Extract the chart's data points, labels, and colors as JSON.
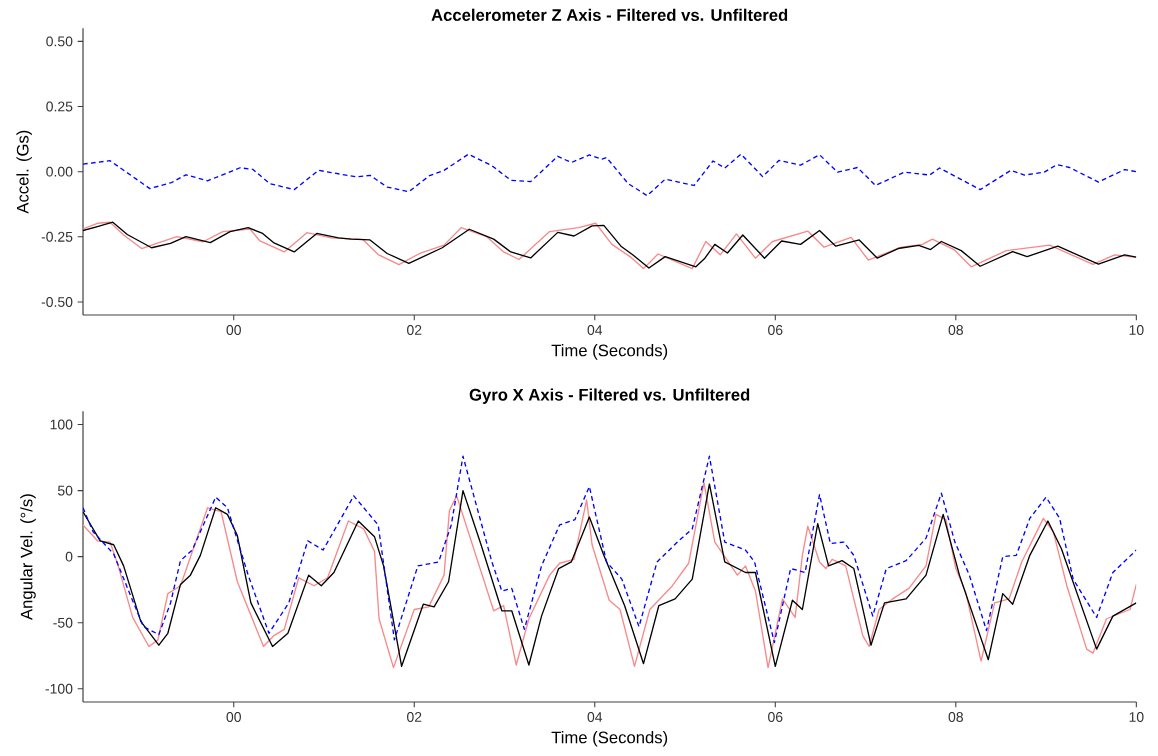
{
  "chart_data": [
    {
      "type": "line",
      "title": "Accelerometer Z Axis - Filtered vs. Unfiltered",
      "xlabel": "Time (Seconds)",
      "ylabel": "Accel. (Gs)",
      "xlim": [
        -1.67,
        10
      ],
      "ylim": [
        -0.55,
        0.55
      ],
      "xticks": [
        {
          "value": 0,
          "label": "00"
        },
        {
          "value": 2,
          "label": "02"
        },
        {
          "value": 4,
          "label": "04"
        },
        {
          "value": 6,
          "label": "06"
        },
        {
          "value": 8,
          "label": "08"
        },
        {
          "value": 10,
          "label": "10"
        }
      ],
      "yticks": [
        {
          "value": -0.5,
          "label": "-0.50"
        },
        {
          "value": -0.25,
          "label": "-0.25"
        },
        {
          "value": 0,
          "label": "0.00"
        },
        {
          "value": 0.25,
          "label": "0.25"
        },
        {
          "value": 0.5,
          "label": "0.50"
        }
      ],
      "series": [
        {
          "color": "#f8898a",
          "line_style": "solid",
          "x": [
            -1.67,
            -1.51,
            -1.37,
            -1.22,
            -1.02,
            -0.91,
            -0.63,
            -0.34,
            -0.12,
            0.18,
            0.29,
            0.56,
            0.81,
            1.08,
            1.43,
            1.6,
            1.83,
            2.06,
            2.33,
            2.52,
            2.8,
            2.99,
            3.16,
            3.5,
            3.82,
            4.01,
            4.19,
            4.39,
            4.54,
            4.7,
            5.08,
            5.23,
            5.39,
            5.57,
            5.78,
            5.97,
            6.36,
            6.54,
            6.84,
            7.03,
            7.4,
            7.63,
            7.74,
            7.98,
            8.17,
            8.56,
            9.04,
            9.52,
            9.76,
            10.0
          ],
          "values": [
            -0.22,
            -0.198,
            -0.194,
            -0.243,
            -0.295,
            -0.282,
            -0.249,
            -0.269,
            -0.23,
            -0.22,
            -0.266,
            -0.308,
            -0.234,
            -0.254,
            -0.26,
            -0.318,
            -0.357,
            -0.314,
            -0.282,
            -0.215,
            -0.249,
            -0.308,
            -0.337,
            -0.23,
            -0.215,
            -0.198,
            -0.279,
            -0.326,
            -0.372,
            -0.316,
            -0.372,
            -0.268,
            -0.319,
            -0.239,
            -0.332,
            -0.268,
            -0.228,
            -0.29,
            -0.252,
            -0.339,
            -0.29,
            -0.279,
            -0.259,
            -0.299,
            -0.365,
            -0.303,
            -0.282,
            -0.356,
            -0.319,
            -0.329
          ]
        },
        {
          "color": "#000000",
          "line_style": "solid",
          "x": [
            -1.67,
            -1.51,
            -1.34,
            -1.18,
            -0.91,
            -0.7,
            -0.53,
            -0.26,
            -0.04,
            0.16,
            0.32,
            0.44,
            0.67,
            0.92,
            1.16,
            1.3,
            1.51,
            1.7,
            1.94,
            2.31,
            2.61,
            2.88,
            3.07,
            3.29,
            3.59,
            3.77,
            3.97,
            4.1,
            4.29,
            4.42,
            4.6,
            4.78,
            5.12,
            5.22,
            5.33,
            5.47,
            5.64,
            5.88,
            6.07,
            6.28,
            6.49,
            6.67,
            6.93,
            7.13,
            7.36,
            7.59,
            7.72,
            7.84,
            8.06,
            8.27,
            8.63,
            8.79,
            9.13,
            9.58,
            9.87,
            10.0
          ],
          "values": [
            -0.226,
            -0.211,
            -0.194,
            -0.241,
            -0.292,
            -0.275,
            -0.249,
            -0.272,
            -0.23,
            -0.215,
            -0.237,
            -0.272,
            -0.308,
            -0.237,
            -0.254,
            -0.259,
            -0.262,
            -0.314,
            -0.352,
            -0.292,
            -0.221,
            -0.259,
            -0.308,
            -0.331,
            -0.233,
            -0.247,
            -0.208,
            -0.206,
            -0.286,
            -0.319,
            -0.37,
            -0.326,
            -0.365,
            -0.332,
            -0.279,
            -0.312,
            -0.243,
            -0.332,
            -0.266,
            -0.279,
            -0.226,
            -0.286,
            -0.262,
            -0.332,
            -0.295,
            -0.283,
            -0.299,
            -0.268,
            -0.303,
            -0.363,
            -0.307,
            -0.326,
            -0.286,
            -0.355,
            -0.319,
            -0.328
          ]
        },
        {
          "color": "#0000ff",
          "line_style": "dashed",
          "x": [
            -1.67,
            -1.37,
            -0.93,
            -0.69,
            -0.53,
            -0.29,
            0.07,
            0.21,
            0.4,
            0.67,
            0.94,
            1.19,
            1.36,
            1.51,
            1.7,
            1.94,
            2.17,
            2.33,
            2.6,
            2.86,
            3.07,
            3.29,
            3.59,
            3.74,
            3.94,
            4.08,
            4.13,
            4.37,
            4.58,
            4.78,
            5.1,
            5.31,
            5.44,
            5.62,
            5.86,
            6.04,
            6.28,
            6.49,
            6.69,
            6.91,
            7.11,
            7.43,
            7.71,
            7.82,
            8.27,
            8.61,
            8.76,
            8.98,
            9.12,
            9.26,
            9.58,
            9.87,
            10.0
          ],
          "values": [
            0.029,
            0.042,
            -0.065,
            -0.042,
            -0.012,
            -0.035,
            0.015,
            0.009,
            -0.046,
            -0.069,
            0.005,
            -0.01,
            -0.02,
            -0.014,
            -0.059,
            -0.077,
            -0.015,
            0.005,
            0.067,
            0.023,
            -0.033,
            -0.038,
            0.059,
            0.035,
            0.064,
            0.048,
            0.054,
            -0.046,
            -0.092,
            -0.029,
            -0.053,
            0.041,
            0.014,
            0.067,
            -0.019,
            0.043,
            0.025,
            0.065,
            -0.002,
            0.016,
            -0.053,
            -0.002,
            -0.013,
            0.014,
            -0.069,
            0.005,
            -0.013,
            -0.002,
            0.027,
            0.016,
            -0.04,
            0.008,
            0.0
          ]
        }
      ]
    },
    {
      "type": "line",
      "title": "Gyro X Axis - Filtered vs. Unfiltered",
      "xlabel": "Time (Seconds)",
      "ylabel": "Angular Vel. (°/s)",
      "xlim": [
        -1.67,
        10
      ],
      "ylim": [
        -110,
        110
      ],
      "xticks": [
        {
          "value": 0,
          "label": "00"
        },
        {
          "value": 2,
          "label": "02"
        },
        {
          "value": 4,
          "label": "04"
        },
        {
          "value": 6,
          "label": "06"
        },
        {
          "value": 8,
          "label": "08"
        },
        {
          "value": 10,
          "label": "10"
        }
      ],
      "yticks": [
        -100,
        -50,
        0,
        50,
        100
      ],
      "series": [
        {
          "color": "#f8898a",
          "line_style": "solid",
          "x": [
            -1.67,
            -1.51,
            -1.37,
            -1.28,
            -1.12,
            -0.94,
            -0.84,
            -0.73,
            -0.59,
            -0.29,
            -0.14,
            0.04,
            0.33,
            0.44,
            0.56,
            0.72,
            0.89,
            1.04,
            1.27,
            1.44,
            1.56,
            1.61,
            1.77,
            2.0,
            2.16,
            2.33,
            2.39,
            2.47,
            2.88,
            2.99,
            3.13,
            3.27,
            3.5,
            3.61,
            3.77,
            3.91,
            3.97,
            4.16,
            4.28,
            4.44,
            4.61,
            4.86,
            5.04,
            5.21,
            5.33,
            5.58,
            5.67,
            5.78,
            5.92,
            6.08,
            6.22,
            6.3,
            6.36,
            6.49,
            6.56,
            6.63,
            6.78,
            6.97,
            7.04,
            7.15,
            7.3,
            7.48,
            7.67,
            7.78,
            7.89,
            8.0,
            8.11,
            8.28,
            8.43,
            8.59,
            8.73,
            8.97,
            9.08,
            9.23,
            9.45,
            9.52,
            9.67,
            9.93,
            10.0
          ],
          "values": [
            24,
            12,
            11,
            -7,
            -46,
            -68,
            -63,
            -28,
            -22,
            37,
            34,
            -19,
            -68,
            -60,
            -55,
            -16,
            -22,
            -16,
            27,
            21,
            4,
            -47,
            -84,
            -40,
            -38,
            -14,
            35,
            46,
            -41,
            -37,
            -82,
            -47,
            -14,
            -5,
            -2,
            43,
            9,
            -33,
            -40,
            -83,
            -40,
            -22,
            -5,
            56,
            11,
            -14,
            -7,
            -26,
            -84,
            -32,
            -46,
            1,
            23,
            -4,
            -9,
            -2,
            -7,
            -60,
            -68,
            -40,
            -32,
            -24,
            -7,
            32,
            28,
            -9,
            -27,
            -79,
            -35,
            -32,
            -4,
            29,
            19,
            -22,
            -70,
            -73,
            -47,
            -40,
            -21
          ]
        },
        {
          "color": "#000000",
          "line_style": "solid",
          "x": [
            -1.67,
            -1.48,
            -1.33,
            -1.22,
            -1.03,
            -0.83,
            -0.73,
            -0.59,
            -0.48,
            -0.37,
            -0.2,
            -0.07,
            0.04,
            0.19,
            0.43,
            0.6,
            0.83,
            0.97,
            1.11,
            1.38,
            1.56,
            1.66,
            1.86,
            2.1,
            2.22,
            2.38,
            2.54,
            2.74,
            2.97,
            3.08,
            3.27,
            3.41,
            3.6,
            3.74,
            3.94,
            4.1,
            4.33,
            4.54,
            4.71,
            4.89,
            5.08,
            5.27,
            5.44,
            5.67,
            5.78,
            6.0,
            6.19,
            6.3,
            6.47,
            6.59,
            6.74,
            6.87,
            7.06,
            7.21,
            7.45,
            7.67,
            7.86,
            8.04,
            8.36,
            8.52,
            8.63,
            8.82,
            9.02,
            9.17,
            9.56,
            9.74,
            10.0
          ],
          "values": [
            34,
            12,
            9,
            -7,
            -49,
            -67,
            -58,
            -21,
            -14,
            1,
            37,
            32,
            16,
            -35,
            -68,
            -58,
            -14,
            -22,
            -12,
            27,
            15,
            -7,
            -83,
            -36,
            -38,
            -19,
            50,
            9,
            -41,
            -41,
            -82,
            -45,
            -9,
            -4,
            30,
            1,
            -37,
            -81,
            -37,
            -32,
            -17,
            55,
            -4,
            -12,
            -12,
            -83,
            -33,
            -40,
            25,
            -7,
            -3,
            -9,
            -67,
            -35,
            -32,
            -14,
            32,
            -14,
            -78,
            -28,
            -36,
            1,
            27,
            6,
            -70,
            -45,
            -35
          ]
        },
        {
          "color": "#0000ff",
          "line_style": "dashed",
          "x": [
            -1.67,
            -1.56,
            -1.33,
            -1.14,
            -1.0,
            -0.83,
            -0.7,
            -0.59,
            -0.46,
            -0.2,
            -0.07,
            0.16,
            0.39,
            0.61,
            0.82,
            0.99,
            1.33,
            1.6,
            1.78,
            2.04,
            2.27,
            2.41,
            2.54,
            2.86,
            2.97,
            3.08,
            3.22,
            3.41,
            3.61,
            3.78,
            3.94,
            4.13,
            4.3,
            4.49,
            4.69,
            4.93,
            5.08,
            5.27,
            5.44,
            5.67,
            5.77,
            5.99,
            6.17,
            6.33,
            6.49,
            6.61,
            6.76,
            6.87,
            7.08,
            7.23,
            7.45,
            7.67,
            7.84,
            7.99,
            8.15,
            8.34,
            8.52,
            8.67,
            8.82,
            9.0,
            9.15,
            9.3,
            9.56,
            9.74,
            10.0
          ],
          "values": [
            37,
            19,
            2,
            -30,
            -53,
            -59,
            -35,
            -3,
            5,
            45,
            37,
            -14,
            -58,
            -35,
            12,
            5,
            46,
            24,
            -63,
            -7,
            -4,
            24,
            76,
            -4,
            -26,
            -24,
            -55,
            -7,
            24,
            28,
            53,
            -4,
            -17,
            -53,
            -4,
            12,
            21,
            76,
            11,
            5,
            -4,
            -65,
            -9,
            -12,
            47,
            10,
            11,
            1,
            -45,
            -9,
            -3,
            14,
            48,
            11,
            -14,
            -56,
            0,
            1,
            29,
            45,
            29,
            -17,
            -46,
            -12,
            5
          ]
        }
      ]
    }
  ]
}
